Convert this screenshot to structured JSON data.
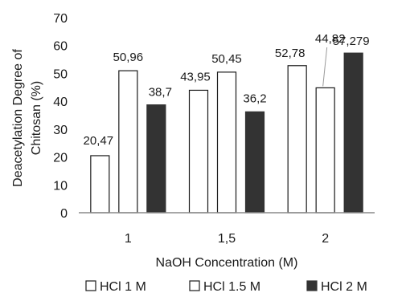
{
  "chart_data": {
    "type": "bar",
    "title": "",
    "xlabel": "NaOH Concentration (M)",
    "ylabel_lines": [
      "Deacetylation Degree of",
      "Chitosan (%)"
    ],
    "categories": [
      "1",
      "1,5",
      "2"
    ],
    "yticks": [
      "0",
      "10",
      "20",
      "30",
      "40",
      "50",
      "60",
      "70"
    ],
    "ylim": [
      0,
      70
    ],
    "grid": false,
    "legend_position": "bottom",
    "series": [
      {
        "name": "HCl 1 M",
        "values": [
          20.47,
          43.95,
          52.78
        ],
        "labels": [
          "20,47",
          "43,95",
          "52,78"
        ],
        "fill": "#ffffff",
        "stroke": "#1a1a1a"
      },
      {
        "name": "HCl 1.5 M",
        "values": [
          50.96,
          50.45,
          44.82
        ],
        "labels": [
          "50,96",
          "50,45",
          "44,82"
        ],
        "fill": "#ffffff",
        "stroke": "#1a1a1a"
      },
      {
        "name": "HCl 2 M",
        "values": [
          38.7,
          36.2,
          57.279
        ],
        "labels": [
          "38,7",
          "36,2",
          "57,279"
        ],
        "fill": "#333333",
        "stroke": "#333333"
      }
    ]
  }
}
